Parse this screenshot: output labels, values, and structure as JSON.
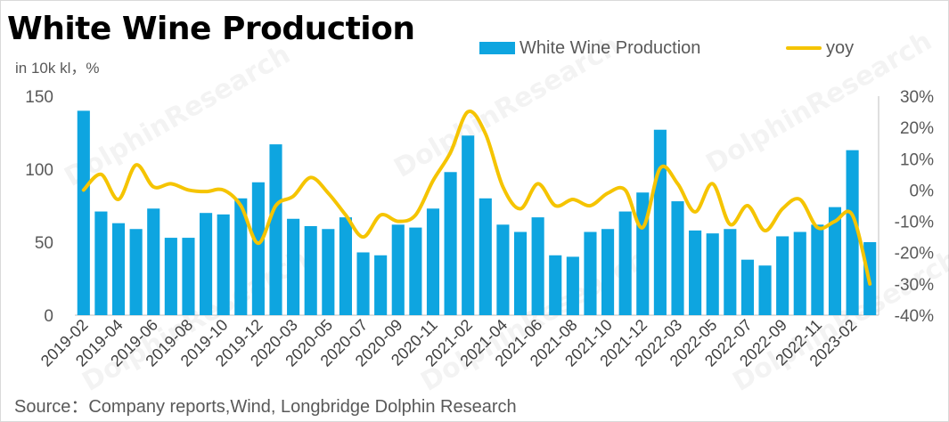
{
  "title": "White Wine Production",
  "unit_label": "in 10k kl，%",
  "source": "Source：Company reports,Wind, Longbridge Dolphin Research",
  "colors": {
    "bar": "#0ea5e0",
    "line": "#f5c400",
    "axis": "#bfbfbf"
  },
  "chart_data": {
    "type": "bar+line",
    "title": "White Wine Production",
    "x": [
      "2019-02",
      "2019-03",
      "2019-04",
      "2019-05",
      "2019-06",
      "2019-07",
      "2019-08",
      "2019-09",
      "2019-10",
      "2019-11",
      "2019-12",
      "2020-01",
      "2020-03",
      "2020-04",
      "2020-05",
      "2020-06",
      "2020-07",
      "2020-08",
      "2020-09",
      "2020-10",
      "2020-11",
      "2020-12",
      "2021-02",
      "2021-03",
      "2021-04",
      "2021-05",
      "2021-06",
      "2021-07",
      "2021-08",
      "2021-09",
      "2021-10",
      "2021-11",
      "2021-12",
      "2022-01",
      "2022-03",
      "2022-04",
      "2022-05",
      "2022-06",
      "2022-07",
      "2022-08",
      "2022-09",
      "2022-10",
      "2022-11",
      "2022-12",
      "2023-02",
      "2023-03"
    ],
    "tick_labels": [
      "2019-02",
      "2019-04",
      "2019-06",
      "2019-08",
      "2019-10",
      "2019-12",
      "2020-03",
      "2020-05",
      "2020-07",
      "2020-09",
      "2020-11",
      "2021-02",
      "2021-04",
      "2021-06",
      "2021-08",
      "2021-10",
      "2021-12",
      "2022-03",
      "2022-05",
      "2022-07",
      "2022-09",
      "2022-11",
      "2023-02"
    ],
    "series": [
      {
        "name": "White Wine Production",
        "type": "bar",
        "axis": "left",
        "values": [
          140,
          71,
          63,
          59,
          73,
          53,
          53,
          70,
          69,
          80,
          91,
          117,
          66,
          61,
          59,
          67,
          43,
          41,
          62,
          60,
          73,
          98,
          123,
          80,
          62,
          57,
          67,
          41,
          40,
          57,
          59,
          71,
          84,
          127,
          78,
          58,
          56,
          59,
          38,
          34,
          54,
          57,
          62,
          74,
          113,
          50
        ]
      },
      {
        "name": "yoy",
        "type": "line",
        "axis": "right",
        "values": [
          0,
          5,
          -3,
          8,
          1,
          2,
          0,
          -0.5,
          0,
          -5,
          -17,
          -5,
          -2,
          4,
          -1,
          -8,
          -15,
          -8,
          -10,
          -8,
          3,
          12,
          25,
          18,
          1,
          -6,
          2,
          -5,
          -3,
          -5,
          -1,
          0,
          -12,
          7,
          2,
          -7,
          2,
          -11,
          -5,
          -13,
          -6,
          -3,
          -12,
          -10,
          -8,
          -30
        ]
      }
    ],
    "y_left": {
      "min": 0,
      "max": 150,
      "ticks": [
        "0",
        "50",
        "100",
        "150"
      ]
    },
    "y_right": {
      "min": -40,
      "max": 30,
      "ticks": [
        "-40%",
        "-30%",
        "-20%",
        "-10%",
        "0%",
        "10%",
        "20%",
        "30%"
      ]
    },
    "legend": {
      "position": "top",
      "items": [
        "White Wine Production",
        "yoy"
      ]
    },
    "grid": false
  }
}
